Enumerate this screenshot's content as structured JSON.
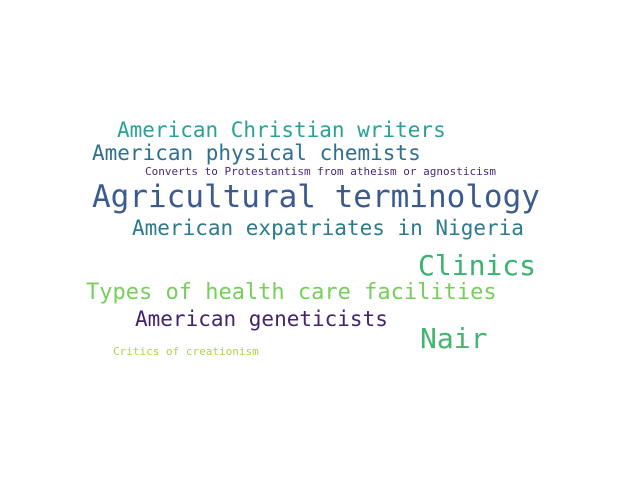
{
  "words": [
    {
      "text": "American Christian writers",
      "color": "#2aa196"
    },
    {
      "text": "American physical chemists",
      "color": "#2f6f8f"
    },
    {
      "text": "Converts to Protestantism from atheism or agnosticism",
      "color": "#482878"
    },
    {
      "text": "Agricultural terminology",
      "color": "#3b5b8f"
    },
    {
      "text": "American expatriates in Nigeria",
      "color": "#2b7a8e"
    },
    {
      "text": "Clinics",
      "color": "#3bb271"
    },
    {
      "text": "Types of health care facilities",
      "color": "#77cf5b"
    },
    {
      "text": "American geneticists",
      "color": "#43236e"
    },
    {
      "text": "Nair",
      "color": "#45b46f"
    },
    {
      "text": "Critics of creationism",
      "color": "#a8d64a"
    }
  ]
}
